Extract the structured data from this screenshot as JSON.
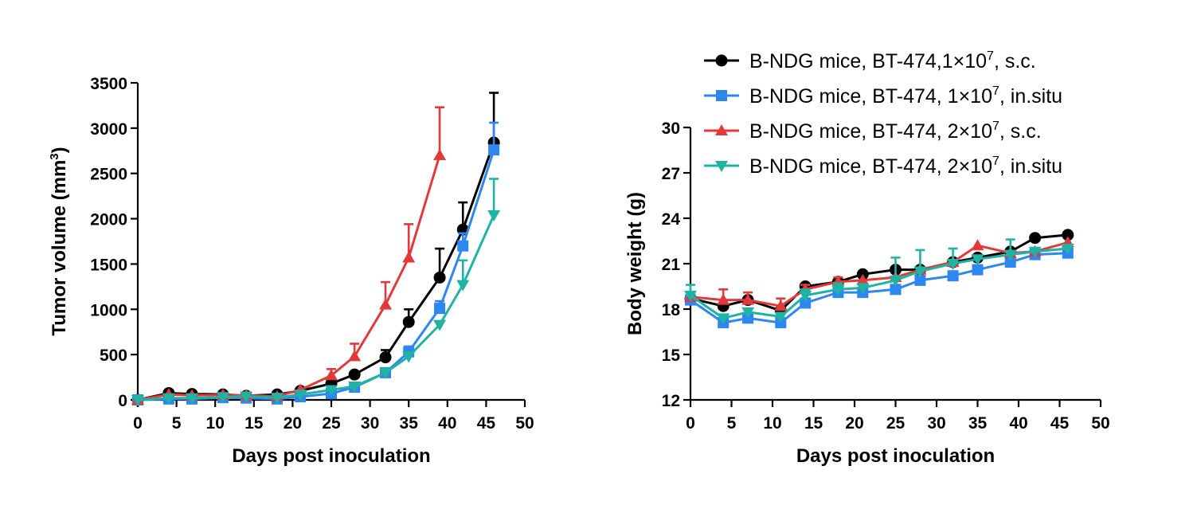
{
  "legend": [
    {
      "series_id": "s1",
      "label": "B-NDG mice, BT-474,1×10",
      "sup": "7",
      "suffix": ", s.c.",
      "color": "#000000",
      "marker": "circle"
    },
    {
      "series_id": "s2",
      "label": "B-NDG mice, BT-474, 1×10",
      "sup": "7",
      "suffix": ", in.situ",
      "color": "#2E86F0",
      "marker": "square"
    },
    {
      "series_id": "s3",
      "label": "B-NDG mice, BT-474, 2×10",
      "sup": "7",
      "suffix": ", s.c.",
      "color": "#E23A3A",
      "marker": "triangle-up"
    },
    {
      "series_id": "s4",
      "label": "B-NDG mice, BT-474, 2×10",
      "sup": "7",
      "suffix": ", in.situ",
      "color": "#1FB3A3",
      "marker": "triangle-down"
    }
  ],
  "chart_data": [
    {
      "type": "line",
      "xlabel": "Days post inoculation",
      "ylabel": "Tumor volume (mm",
      "ylabel_sup": "3",
      "ylabel_suffix": ")",
      "xlim": [
        0,
        50
      ],
      "ylim": [
        0,
        3500
      ],
      "xticks": [
        0,
        5,
        10,
        15,
        20,
        25,
        30,
        35,
        40,
        45,
        50
      ],
      "yticks": [
        0,
        500,
        1000,
        1500,
        2000,
        2500,
        3000,
        3500
      ],
      "grid": false,
      "series": [
        {
          "id": "s1",
          "color": "#000000",
          "marker": "circle",
          "x": [
            0,
            4,
            7,
            11,
            14,
            18,
            21,
            25,
            28,
            32,
            35,
            39,
            42,
            46
          ],
          "y": [
            0,
            75,
            65,
            60,
            45,
            60,
            100,
            180,
            280,
            470,
            860,
            1350,
            1880,
            2840
          ],
          "err": [
            0,
            0,
            0,
            0,
            0,
            0,
            0,
            0,
            0,
            80,
            140,
            320,
            300,
            550
          ]
        },
        {
          "id": "s2",
          "color": "#2E86F0",
          "marker": "square",
          "x": [
            0,
            4,
            7,
            11,
            14,
            18,
            21,
            25,
            28,
            32,
            35,
            39,
            42,
            46
          ],
          "y": [
            0,
            10,
            10,
            25,
            20,
            10,
            35,
            70,
            140,
            300,
            530,
            1010,
            1700,
            2760
          ],
          "err": [
            0,
            0,
            0,
            0,
            0,
            0,
            0,
            0,
            30,
            30,
            60,
            80,
            140,
            300
          ]
        },
        {
          "id": "s3",
          "color": "#E23A3A",
          "marker": "triangle-up",
          "x": [
            0,
            4,
            7,
            11,
            14,
            18,
            21,
            25,
            28,
            32,
            35,
            39
          ],
          "y": [
            0,
            60,
            50,
            55,
            50,
            40,
            110,
            270,
            480,
            1050,
            1570,
            2700
          ],
          "err": [
            0,
            0,
            0,
            0,
            0,
            0,
            0,
            70,
            140,
            250,
            370,
            530
          ]
        },
        {
          "id": "s4",
          "color": "#1FB3A3",
          "marker": "triangle-down",
          "x": [
            0,
            4,
            7,
            11,
            14,
            18,
            21,
            25,
            28,
            32,
            35,
            39,
            42,
            46
          ],
          "y": [
            0,
            20,
            20,
            30,
            40,
            25,
            60,
            110,
            150,
            300,
            480,
            830,
            1270,
            2040
          ],
          "err": [
            0,
            0,
            0,
            0,
            40,
            0,
            0,
            0,
            0,
            0,
            0,
            0,
            270,
            400
          ]
        }
      ]
    },
    {
      "type": "line",
      "xlabel": "Days post inoculation",
      "ylabel": "Body weight (g)",
      "xlim": [
        0,
        50
      ],
      "ylim": [
        12,
        30
      ],
      "xticks": [
        0,
        5,
        10,
        15,
        20,
        25,
        30,
        35,
        40,
        45,
        50
      ],
      "yticks": [
        12,
        15,
        18,
        21,
        24,
        27,
        30
      ],
      "grid": false,
      "series": [
        {
          "id": "s1",
          "color": "#000000",
          "marker": "circle",
          "x": [
            0,
            4,
            7,
            11,
            14,
            18,
            21,
            25,
            28,
            32,
            35,
            39,
            42,
            46
          ],
          "y": [
            18.7,
            18.2,
            18.6,
            17.9,
            19.5,
            19.8,
            20.3,
            20.6,
            20.6,
            21.1,
            21.4,
            21.8,
            22.7,
            22.9
          ],
          "err": [
            0,
            0,
            0,
            0,
            0,
            0,
            0,
            0,
            0,
            0,
            0,
            0,
            0,
            0
          ]
        },
        {
          "id": "s2",
          "color": "#2E86F0",
          "marker": "square",
          "x": [
            0,
            4,
            7,
            11,
            14,
            18,
            21,
            25,
            28,
            32,
            35,
            39,
            42,
            46
          ],
          "y": [
            18.6,
            17.1,
            17.4,
            17.1,
            18.4,
            19.1,
            19.1,
            19.3,
            19.9,
            20.2,
            20.6,
            21.1,
            21.6,
            21.7
          ],
          "err": [
            0,
            0,
            0,
            0,
            0,
            0,
            0,
            0,
            0,
            0,
            0,
            0,
            0,
            0.4
          ]
        },
        {
          "id": "s3",
          "color": "#E23A3A",
          "marker": "triangle-up",
          "x": [
            0,
            4,
            7,
            11,
            14,
            18,
            21,
            25,
            28,
            32,
            35,
            39,
            42,
            46
          ],
          "y": [
            18.8,
            18.6,
            18.6,
            18.2,
            19.3,
            19.8,
            19.9,
            20.1,
            20.6,
            21.1,
            22.2,
            21.7,
            21.8,
            22.4
          ],
          "err": [
            0,
            0.7,
            0.5,
            0.5,
            0.3,
            0.3,
            0,
            0,
            0,
            0,
            0,
            0,
            0,
            0
          ]
        },
        {
          "id": "s4",
          "color": "#1FB3A3",
          "marker": "triangle-down",
          "x": [
            0,
            4,
            7,
            11,
            14,
            18,
            21,
            25,
            28,
            32,
            35,
            39,
            42,
            46
          ],
          "y": [
            18.9,
            17.4,
            17.8,
            17.5,
            18.9,
            19.3,
            19.4,
            19.9,
            20.5,
            21.0,
            21.3,
            21.6,
            21.8,
            22.0
          ],
          "err": [
            0.7,
            0,
            0,
            0,
            0.4,
            0.4,
            0,
            1.5,
            1.4,
            1.0,
            0,
            1.0,
            0,
            0
          ]
        }
      ]
    }
  ]
}
